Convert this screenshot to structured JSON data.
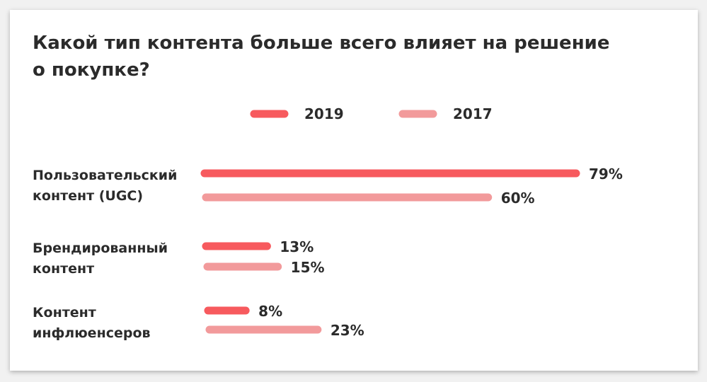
{
  "chart_data": {
    "type": "bar",
    "orientation": "horizontal",
    "title": "Какой тип контента больше всего влияет на решение о покупке?",
    "categories": [
      [
        "Пользовательский",
        "контент (UGC)"
      ],
      [
        "Брендированный",
        "контент"
      ],
      [
        "Контент",
        "инфлюенсеров"
      ]
    ],
    "series": [
      {
        "name": "2019",
        "color": "#f75a5e",
        "values": [
          79,
          13,
          8
        ],
        "labels": [
          "79%",
          "13%",
          "8%"
        ]
      },
      {
        "name": "2017",
        "color": "#f29a9b",
        "values": [
          60,
          15,
          23
        ],
        "labels": [
          "60%",
          "15%",
          "23%"
        ]
      }
    ],
    "xlim": [
      0,
      79
    ],
    "legend_position": "top-center",
    "grid": false
  }
}
